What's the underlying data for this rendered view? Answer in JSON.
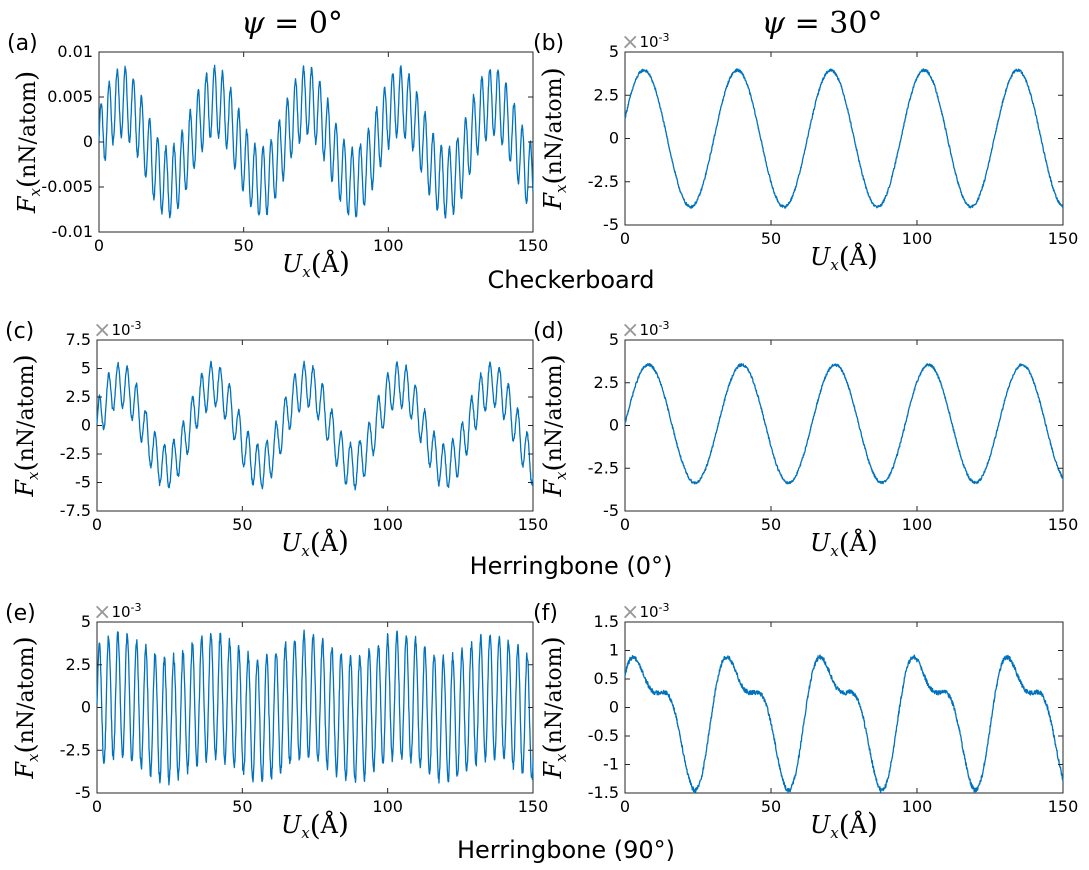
{
  "column_titles": [
    {
      "var": "ψ",
      "eq": " = ",
      "val": "0°"
    },
    {
      "var": "ψ",
      "eq": " = ",
      "val": "30°"
    }
  ],
  "row_titles": [
    "Checkerboard",
    "Herringbone (0°)",
    "Herringbone (90°)"
  ],
  "axis_labels": {
    "x_var": "U",
    "x_sub": "x",
    "x_unit": "Å",
    "y_var": "F",
    "y_sub": "x",
    "y_unit": "nN/atom"
  },
  "exponent": {
    "times": "×",
    "base": "10",
    "power": "-3"
  },
  "colors": {
    "line": "#0072BD",
    "axis": "#262626"
  },
  "chart_data": [
    {
      "panel": "(a)",
      "type": "line",
      "exponent": "",
      "xlim": [
        0,
        150
      ],
      "xticks": [
        0,
        50,
        100,
        150
      ],
      "ylim": [
        -0.01,
        0.01
      ],
      "yticks": [
        -0.01,
        -0.005,
        0,
        0.005,
        0.01
      ],
      "yticklabels": [
        "-0.01",
        "-0.005",
        "0",
        "0.005",
        "0.01"
      ],
      "model": {
        "components": [
          [
            0.0045,
            32,
            0
          ],
          [
            0.0038,
            2.8,
            0
          ]
        ],
        "offset": 0,
        "noise": 0.0003
      }
    },
    {
      "panel": "(b)",
      "type": "line",
      "exponent": "×10^-3",
      "xlim": [
        0,
        150
      ],
      "xticks": [
        0,
        50,
        100,
        150
      ],
      "ylim": [
        -5,
        5
      ],
      "yticks": [
        -5,
        -2.5,
        0,
        2.5,
        5
      ],
      "yticklabels": [
        "-5",
        "-2.5",
        "0",
        "2.5",
        "5"
      ],
      "model": {
        "components": [
          [
            3.95,
            32,
            0.3
          ]
        ],
        "offset": 0,
        "noise": 0.08
      }
    },
    {
      "panel": "(c)",
      "type": "line",
      "exponent": "×10^-3",
      "xlim": [
        0,
        150
      ],
      "xticks": [
        0,
        50,
        100,
        150
      ],
      "ylim": [
        -7.5,
        7.5
      ],
      "yticks": [
        -7.5,
        -5,
        -2.5,
        0,
        2.5,
        5,
        7.5
      ],
      "yticklabels": [
        "-7.5",
        "-5",
        "-2.5",
        "0",
        "2.5",
        "5",
        "7.5"
      ],
      "model": {
        "components": [
          [
            3.6,
            32,
            0
          ],
          [
            1.9,
            3.2,
            0
          ]
        ],
        "offset": 0,
        "noise": 0.2
      }
    },
    {
      "panel": "(d)",
      "type": "line",
      "exponent": "×10^-3",
      "xlim": [
        0,
        150
      ],
      "xticks": [
        0,
        50,
        100,
        150
      ],
      "ylim": [
        -5,
        5
      ],
      "yticks": [
        -5,
        -2.5,
        0,
        2.5,
        5
      ],
      "yticklabels": [
        "-5",
        "-2.5",
        "0",
        "2.5",
        "5"
      ],
      "model": {
        "components": [
          [
            3.45,
            32,
            0
          ]
        ],
        "offset": 0.1,
        "noise": 0.08
      }
    },
    {
      "panel": "(e)",
      "type": "line",
      "exponent": "×10^-3",
      "xlim": [
        0,
        150
      ],
      "xticks": [
        0,
        50,
        100,
        150
      ],
      "ylim": [
        -5,
        5
      ],
      "yticks": [
        -5,
        -2.5,
        0,
        2.5,
        5
      ],
      "yticklabels": [
        "-5",
        "-2.5",
        "0",
        "2.5",
        "5"
      ],
      "model": {
        "components": [
          [
            3.6,
            3.2,
            0
          ],
          [
            0.7,
            32,
            0
          ]
        ],
        "offset": 0,
        "noise": 0.25
      }
    },
    {
      "panel": "(f)",
      "type": "line",
      "exponent": "×10^-3",
      "xlim": [
        0,
        150
      ],
      "xticks": [
        0,
        50,
        100,
        150
      ],
      "ylim": [
        -1.5,
        1.5
      ],
      "yticks": [
        -1.5,
        -1,
        -0.5,
        0,
        0.5,
        1,
        1.5
      ],
      "yticklabels": [
        "-1.5",
        "-1",
        "-0.5",
        "0",
        "0.5",
        "1",
        "1.5"
      ],
      "model": {
        "components": [
          [
            0.95,
            32,
            0.25
          ],
          [
            0.45,
            16,
            1.3
          ]
        ],
        "offset": -0.1,
        "noise": 0.04
      }
    }
  ]
}
